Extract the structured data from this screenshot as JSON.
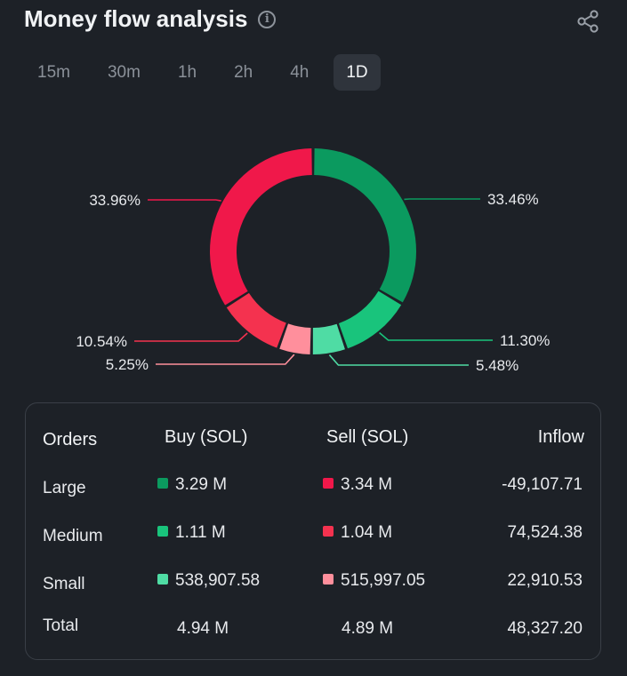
{
  "header": {
    "title": "Money flow analysis",
    "info_icon": "info-icon",
    "share_icon": "share-icon"
  },
  "tabs": [
    {
      "label": "15m",
      "active": false
    },
    {
      "label": "30m",
      "active": false
    },
    {
      "label": "1h",
      "active": false
    },
    {
      "label": "2h",
      "active": false
    },
    {
      "label": "4h",
      "active": false
    },
    {
      "label": "1D",
      "active": true
    }
  ],
  "chart_data": {
    "type": "pie",
    "donut": true,
    "slices": [
      {
        "label": "Large buy",
        "value": 33.46,
        "text": "33.46%",
        "color": "#0b9a5f",
        "side": "right"
      },
      {
        "label": "Medium buy",
        "value": 11.3,
        "text": "11.30%",
        "color": "#19c47c",
        "side": "right"
      },
      {
        "label": "Small buy",
        "value": 5.48,
        "text": "5.48%",
        "color": "#4fdca4",
        "side": "right"
      },
      {
        "label": "Small sell",
        "value": 5.25,
        "text": "5.25%",
        "color": "#ff8f9c",
        "side": "left"
      },
      {
        "label": "Medium sell",
        "value": 10.54,
        "text": "10.54%",
        "color": "#f4324f",
        "side": "left"
      },
      {
        "label": "Large sell",
        "value": 33.96,
        "text": "33.96%",
        "color": "#f0184a",
        "side": "left"
      }
    ]
  },
  "table": {
    "headers": {
      "orders": "Orders",
      "buy": "Buy (SOL)",
      "sell": "Sell (SOL)",
      "inflow": "Inflow"
    },
    "rows": [
      {
        "order": "Large",
        "buy": "3.29 M",
        "sell": "3.34 M",
        "inflow": "-49,107.71",
        "buy_color": "#0b9a5f",
        "sell_color": "#f0184a"
      },
      {
        "order": "Medium",
        "buy": "1.11 M",
        "sell": "1.04 M",
        "inflow": "74,524.38",
        "buy_color": "#19c47c",
        "sell_color": "#f4324f"
      },
      {
        "order": "Small",
        "buy": "538,907.58",
        "sell": "515,997.05",
        "inflow": "22,910.53",
        "buy_color": "#4fdca4",
        "sell_color": "#ff8f9c"
      }
    ],
    "total": {
      "order": "Total",
      "buy": "4.94 M",
      "sell": "4.89 M",
      "inflow": "48,327.20"
    }
  }
}
